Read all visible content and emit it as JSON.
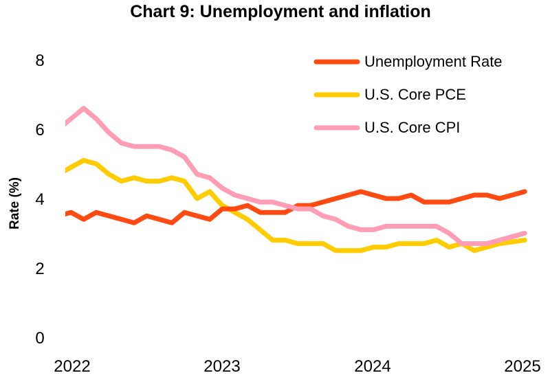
{
  "chart_data": {
    "type": "line",
    "title": "Chart 9: Unemployment and inflation",
    "xlabel": "",
    "ylabel": "Rate (%)",
    "ylim": [
      0,
      8
    ],
    "yticks": [
      "0",
      "2",
      "4",
      "6",
      "8"
    ],
    "xticks": [
      "2022",
      "2023",
      "2024",
      "2025"
    ],
    "grid": false,
    "legend_position": "top-right",
    "x": [
      "2021-12",
      "2022-01",
      "2022-02",
      "2022-03",
      "2022-04",
      "2022-05",
      "2022-06",
      "2022-07",
      "2022-08",
      "2022-09",
      "2022-10",
      "2022-11",
      "2022-12",
      "2023-01",
      "2023-02",
      "2023-03",
      "2023-04",
      "2023-05",
      "2023-06",
      "2023-07",
      "2023-08",
      "2023-09",
      "2023-10",
      "2023-11",
      "2023-12",
      "2024-01",
      "2024-02",
      "2024-03",
      "2024-04",
      "2024-05",
      "2024-06",
      "2024-07",
      "2024-08",
      "2024-09",
      "2024-10",
      "2024-11",
      "2024-12",
      "2025-01"
    ],
    "series": [
      {
        "name": "Unemployment Rate",
        "color": "#FF4A12",
        "values": [
          3.5,
          3.6,
          3.4,
          3.6,
          3.5,
          3.4,
          3.3,
          3.5,
          3.4,
          3.3,
          3.6,
          3.5,
          3.4,
          3.7,
          3.7,
          3.8,
          3.6,
          3.6,
          3.6,
          3.8,
          3.8,
          3.9,
          4.0,
          4.1,
          4.2,
          4.1,
          4.0,
          4.0,
          4.1,
          3.9,
          3.9,
          3.9,
          4.0,
          4.1,
          4.1,
          4.0,
          4.1,
          4.2
        ]
      },
      {
        "name": "U.S. Core PCE",
        "color": "#FFCC00",
        "values": [
          4.7,
          4.9,
          5.1,
          5.0,
          4.7,
          4.5,
          4.6,
          4.5,
          4.5,
          4.6,
          4.5,
          4.0,
          4.2,
          3.8,
          3.6,
          3.4,
          3.1,
          2.8,
          2.8,
          2.7,
          2.7,
          2.7,
          2.5,
          2.5,
          2.5,
          2.6,
          2.6,
          2.7,
          2.7,
          2.7,
          2.8,
          2.6,
          2.7,
          2.5,
          2.6,
          2.7,
          2.75,
          2.8
        ]
      },
      {
        "name": "U.S. Core CPI",
        "color": "#FF9DB6",
        "values": [
          6.0,
          6.3,
          6.6,
          6.3,
          5.9,
          5.6,
          5.5,
          5.5,
          5.5,
          5.4,
          5.2,
          4.7,
          4.6,
          4.3,
          4.1,
          4.0,
          3.9,
          3.9,
          3.8,
          3.7,
          3.7,
          3.5,
          3.4,
          3.2,
          3.1,
          3.1,
          3.2,
          3.2,
          3.2,
          3.2,
          3.2,
          3.0,
          2.7,
          2.7,
          2.7,
          2.8,
          2.9,
          3.0
        ]
      }
    ]
  }
}
